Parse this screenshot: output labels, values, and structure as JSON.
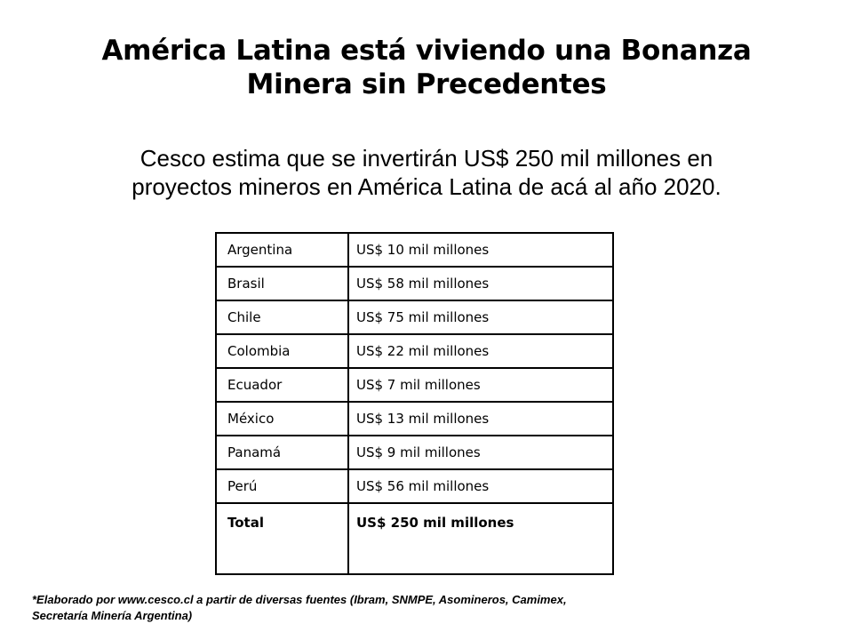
{
  "title": {
    "line1": "América Latina está viviendo una Bonanza",
    "line2": "Minera sin Precedentes"
  },
  "subtitle": {
    "line1": "Cesco estima que se invertirán US$ 250 mil millones en",
    "line2": "proyectos mineros en América Latina de acá al año 2020."
  },
  "table": {
    "rows": [
      {
        "country": "Argentina",
        "amount": "US$ 10 mil millones"
      },
      {
        "country": "Brasil",
        "amount": "US$ 58 mil millones"
      },
      {
        "country": "Chile",
        "amount": "US$ 75 mil millones"
      },
      {
        "country": "Colombia",
        "amount": "US$ 22 mil millones"
      },
      {
        "country": "Ecuador",
        "amount": "US$ 7 mil millones"
      },
      {
        "country": "México",
        "amount": "US$ 13 mil millones"
      },
      {
        "country": "Panamá",
        "amount": "US$ 9 mil millones"
      },
      {
        "country": "Perú",
        "amount": "US$ 56 mil millones"
      }
    ],
    "total": {
      "label": "Total",
      "amount": "US$ 250 mil millones"
    }
  },
  "footnote": {
    "line1": "*Elaborado por www.cesco.cl a partir de diversas fuentes (Ibram, SNMPE, Asomineros, Camimex,",
    "line2": "Secretaría Minería Argentina)"
  }
}
